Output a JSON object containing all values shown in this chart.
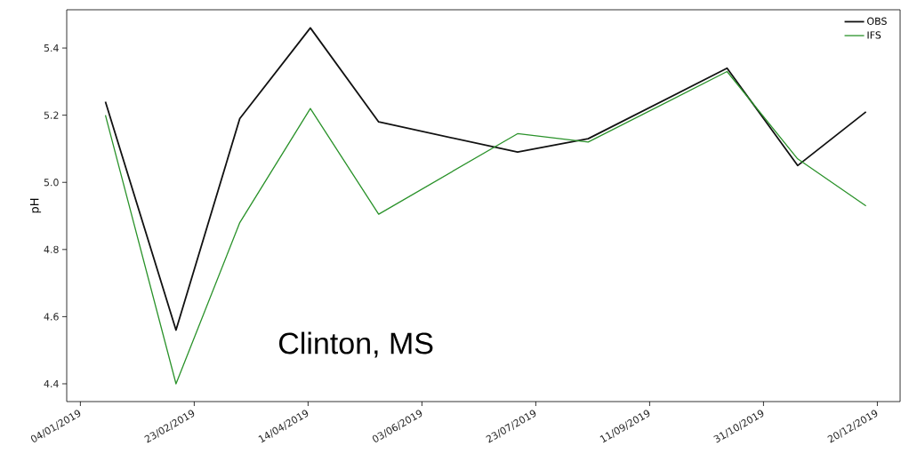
{
  "chart_data": {
    "type": "line",
    "ylabel": "pH",
    "annotations": [
      "Clinton, MS"
    ],
    "x": [
      "2019-01-15",
      "2019-02-15",
      "2019-03-15",
      "2019-04-15",
      "2019-05-15",
      "2019-07-15",
      "2019-08-15",
      "2019-10-15",
      "2019-11-15",
      "2019-12-15"
    ],
    "series": [
      {
        "name": "OBS",
        "color": "#111111",
        "values": [
          5.24,
          4.56,
          5.19,
          5.46,
          5.18,
          5.09,
          5.13,
          5.34,
          5.05,
          5.21
        ]
      },
      {
        "name": "IFS",
        "color": "#2a922a",
        "values": [
          5.2,
          4.4,
          4.88,
          5.22,
          4.905,
          5.145,
          5.12,
          5.33,
          5.07,
          4.93
        ]
      }
    ],
    "xlim": [
      "2018-12-29",
      "2019-12-30"
    ],
    "xticks": [
      {
        "value": "2019-01-04",
        "label": "04/01/2019"
      },
      {
        "value": "2019-02-23",
        "label": "23/02/2019"
      },
      {
        "value": "2019-04-14",
        "label": "14/04/2019"
      },
      {
        "value": "2019-06-03",
        "label": "03/06/2019"
      },
      {
        "value": "2019-07-23",
        "label": "23/07/2019"
      },
      {
        "value": "2019-09-11",
        "label": "11/09/2019"
      },
      {
        "value": "2019-10-31",
        "label": "31/10/2019"
      },
      {
        "value": "2019-12-20",
        "label": "20/12/2019"
      }
    ],
    "ylim": [
      4.347,
      5.514
    ],
    "yticks": [
      4.4,
      4.6,
      4.8,
      {
        "value": 5,
        "label": "5.0"
      },
      5.2,
      5.4
    ],
    "legend": "top right"
  }
}
